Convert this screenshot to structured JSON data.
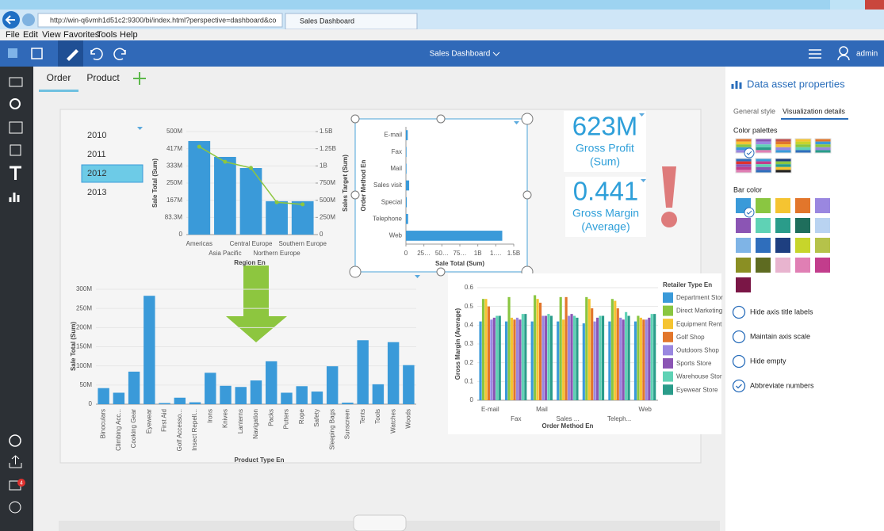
{
  "browser": {
    "url": "http://win-q6vmh1d51c2:9300/bi/index.html?perspective=dashboard&co",
    "tab": "Sales Dashboard",
    "menu": [
      "File",
      "Edit",
      "View",
      "Favorites",
      "Tools",
      "Help"
    ]
  },
  "app_bar": {
    "title": "Sales Dashboard",
    "user": "admin"
  },
  "sidebar": {
    "badge": "4"
  },
  "dashboard_tabs": [
    "Order",
    "Product"
  ],
  "year_filter": {
    "items": [
      "2010",
      "2011",
      "2012",
      "2013"
    ]
  },
  "kpis": [
    {
      "value": "623M",
      "label": "Gross Profit",
      "aggregate": "(Sum)"
    },
    {
      "value": "0.441",
      "label": "Gross Margin",
      "aggregate": "(Average)"
    }
  ],
  "chart_data": [
    {
      "type": "bar",
      "categories": [
        "Americas",
        "Asia Pacific",
        "Central Europe",
        "Northern Europe",
        "Southern Europe"
      ],
      "xlabel": "Region En",
      "ylabel": "Sale Total (Sum)",
      "y2label": "Sales Target (Sum)",
      "series": [
        {
          "color": "#3a9ad9",
          "values": [
            454000000,
            377000000,
            323000000,
            162000000,
            162000000
          ]
        },
        {
          "type": "line",
          "axis": "y2",
          "color": "#8dc63f",
          "values": [
            1280000000,
            1060000000,
            970000000,
            470000000,
            440000000
          ]
        }
      ],
      "ylim": [
        0,
        500000000
      ],
      "yticks": [
        0,
        {
          "value": 83333333,
          "label": "83.3M"
        },
        {
          "value": 166666667,
          "label": "167M"
        },
        {
          "value": 250000000,
          "label": "250M"
        },
        {
          "value": 333333333,
          "label": "333M"
        },
        {
          "value": 416666667,
          "label": "417M"
        },
        {
          "value": 500000000,
          "label": "500M"
        }
      ],
      "y2lim": [
        0,
        1500000000
      ],
      "y2ticks": [
        0,
        {
          "value": 250000000,
          "label": "250M"
        },
        {
          "value": 500000000,
          "label": "500M"
        },
        {
          "value": 750000000,
          "label": "750M"
        },
        {
          "value": 1000000000,
          "label": "1B"
        },
        {
          "value": 1250000000,
          "label": "1.25B"
        },
        {
          "value": 1500000000,
          "label": "1.5B"
        }
      ],
      "grid": true
    },
    {
      "type": "bar",
      "orientation": "horizontal",
      "categories": [
        "E-mail",
        "Fax",
        "Mail",
        "Sales visit",
        "Special",
        "Telephone",
        "Web"
      ],
      "xlabel": "Sale Total (Sum)",
      "ylabel": "Order Method En",
      "color": "#3a9ad9",
      "values": [
        25000000,
        8000000,
        8000000,
        45000000,
        12000000,
        30000000,
        1340000000
      ],
      "xlim": [
        0,
        1500000000
      ],
      "xticks": [
        0,
        {
          "value": 250000000,
          "label": "25…"
        },
        {
          "value": 500000000,
          "label": "50…"
        },
        {
          "value": 750000000,
          "label": "75…"
        },
        {
          "value": 1000000000,
          "label": "1B"
        },
        {
          "value": 1250000000,
          "label": "1.…"
        },
        {
          "value": 1500000000,
          "label": "1.5B"
        }
      ],
      "grid": false
    },
    {
      "type": "bar",
      "categories": [
        "Binoculars",
        "Climbing Acc...",
        "Cooking Gear",
        "Eyewear",
        "First Aid",
        "Golf Accesso...",
        "Insect Repell...",
        "Irons",
        "Knives",
        "Lanterns",
        "Navigation",
        "Packs",
        "Putters",
        "Rope",
        "Safety",
        "Sleeping Bags",
        "Sunscreen",
        "Tents",
        "Tools",
        "Watches",
        "Woods"
      ],
      "xlabel": "Product Type En",
      "ylabel": "Sale Total (Sum)",
      "color": "#3a9ad9",
      "values": [
        42000000,
        30000000,
        85000000,
        283000000,
        3000000,
        17000000,
        5000000,
        82000000,
        48000000,
        45000000,
        62000000,
        112000000,
        30000000,
        47000000,
        33000000,
        99000000,
        4000000,
        167000000,
        52000000,
        162000000,
        102000000
      ],
      "ylim": [
        0,
        300000000
      ],
      "yticks": [
        0,
        {
          "value": 50000000,
          "label": "50M"
        },
        {
          "value": 100000000,
          "label": "100M"
        },
        {
          "value": 150000000,
          "label": "150M"
        },
        {
          "value": 200000000,
          "label": "200M"
        },
        {
          "value": 250000000,
          "label": "250M"
        },
        {
          "value": 300000000,
          "label": "300M"
        }
      ],
      "grid": true
    },
    {
      "type": "bar",
      "categories": [
        "E-mail",
        "Fax",
        "Mail",
        "Sales ...",
        null,
        "Teleph...",
        "Web"
      ],
      "xlabel": "Order Method En",
      "ylabel": "Gross Margin (Average)",
      "legend_title": "Retailer Type En",
      "series": [
        {
          "name": "Department Stor",
          "color": "#3a9ad9",
          "values": [
            0.42,
            0.42,
            0.42,
            0.42,
            0.41,
            0.42,
            0.42
          ]
        },
        {
          "name": "Direct Marketing",
          "color": "#8ac641",
          "values": [
            0.54,
            0.55,
            0.56,
            0.55,
            0.55,
            0.54,
            0.45
          ]
        },
        {
          "name": "Equipment Rent",
          "color": "#f5c431",
          "values": [
            0.54,
            0.44,
            0.54,
            0.43,
            0.54,
            0.53,
            0.44
          ]
        },
        {
          "name": "Golf Shop",
          "color": "#e2762b",
          "values": [
            0.5,
            0.43,
            0.52,
            0.55,
            0.49,
            0.49,
            0.43
          ]
        },
        {
          "name": "Outdoors Shop",
          "color": "#9a87e0",
          "values": [
            0.43,
            0.44,
            0.45,
            0.45,
            0.42,
            0.44,
            0.43
          ]
        },
        {
          "name": "Sports Store",
          "color": "#8b55b4",
          "values": [
            0.44,
            0.43,
            0.45,
            0.46,
            0.44,
            0.43,
            0.44
          ]
        },
        {
          "name": "Warehouse Stor",
          "color": "#5fd2b5",
          "values": [
            0.45,
            0.46,
            0.46,
            0.45,
            0.45,
            0.47,
            0.46
          ]
        },
        {
          "name": "Eyewear Store",
          "color": "#2a9c8a",
          "values": [
            0.45,
            0.46,
            0.45,
            0.44,
            0.45,
            0.45,
            0.46
          ]
        }
      ],
      "ylim": [
        0,
        0.6
      ],
      "yticks": [
        0,
        0.1,
        0.2,
        0.3,
        0.4,
        0.5,
        0.6
      ],
      "grid": true
    }
  ],
  "properties_panel": {
    "title": "Data asset properties",
    "tabs": [
      "General style",
      "Visualization details"
    ],
    "palettes_label": "Color palettes",
    "bar_color_label": "Bar color",
    "options": [
      {
        "label": "Hide axis title labels",
        "checked": false
      },
      {
        "label": "Maintain axis scale",
        "checked": false
      },
      {
        "label": "Hide empty",
        "checked": false
      },
      {
        "label": "Abbreviate numbers",
        "checked": true
      }
    ]
  }
}
